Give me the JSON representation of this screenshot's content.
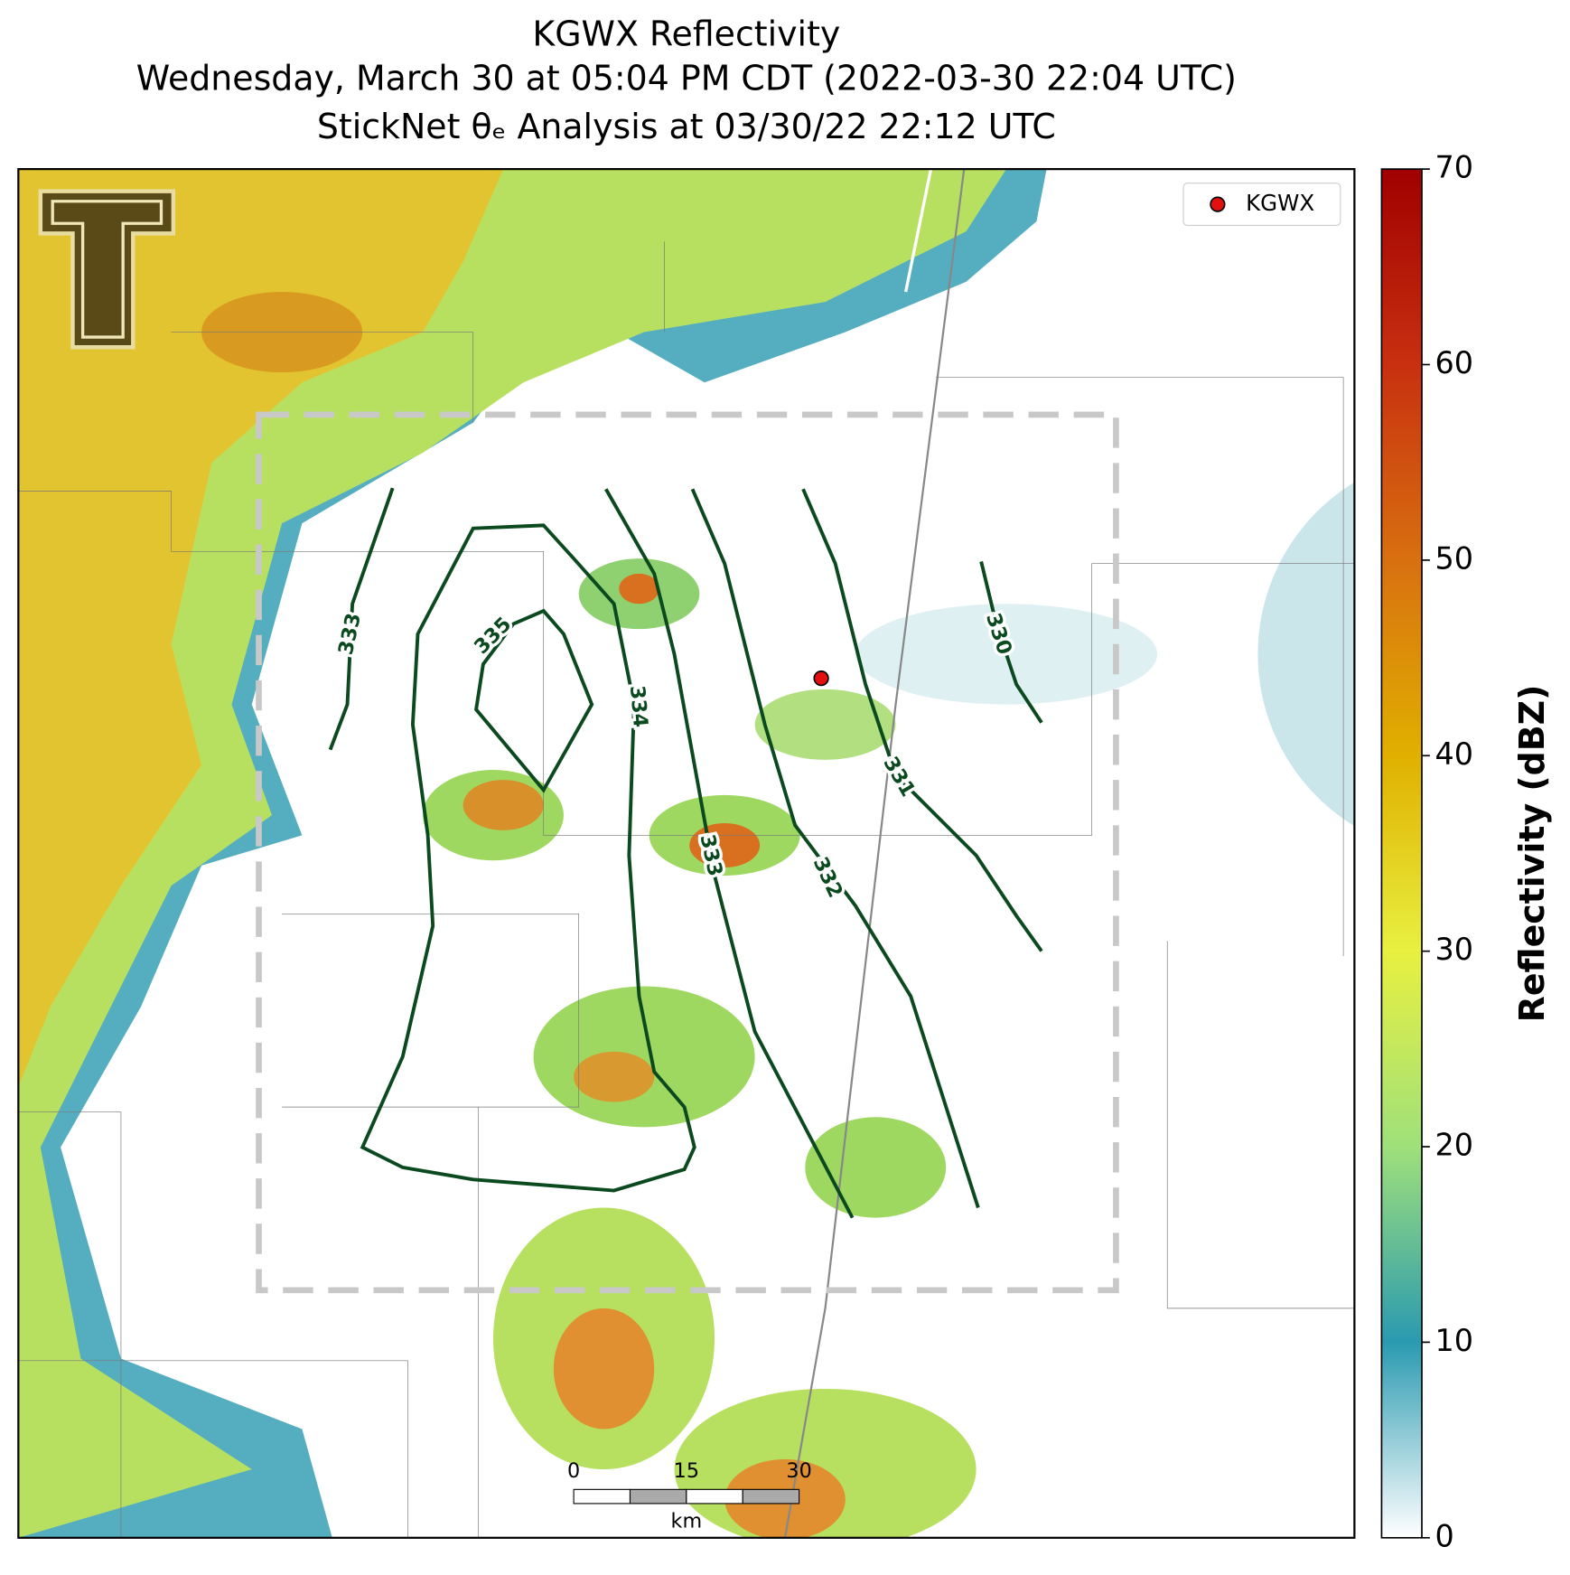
{
  "title": {
    "line1": "KGWX Reflectivity",
    "line2": "Wednesday, March 30 at 05:04 PM CDT (2022-03-30 22:04 UTC)",
    "line3": "StickNet θₑ Analysis at 03/30/22 22:12 UTC"
  },
  "legend": {
    "label": "KGWX",
    "color": "#e31010"
  },
  "contours": {
    "labels": [
      "333",
      "335",
      "334",
      "333",
      "332",
      "331",
      "330"
    ]
  },
  "scale_bar": {
    "ticks": [
      "0",
      "15",
      "30"
    ],
    "unit": "km"
  },
  "colorbar": {
    "label": "Reflectivity (dBZ)",
    "lim": [
      0,
      70
    ],
    "ticks": [
      0,
      10,
      20,
      30,
      40,
      50,
      60,
      70
    ]
  }
}
